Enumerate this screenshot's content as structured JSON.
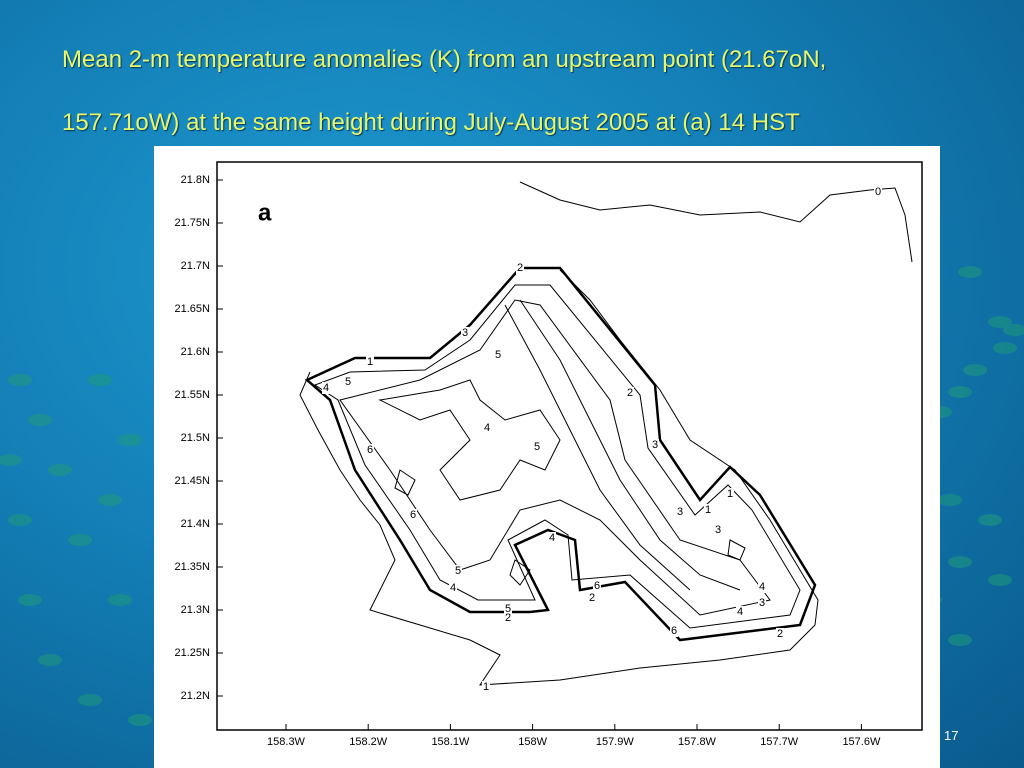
{
  "slide": {
    "title_line1": "Mean 2-m temperature anomalies (K) from an upstream point (21.67oN,",
    "title_line2": "157.71oW) at the same height during July-August 2005 at (a) 14 HST",
    "slide_number": "17"
  },
  "map": {
    "panel_label": "a",
    "yticks": [
      "21.8N",
      "21.75N",
      "21.7N",
      "21.65N",
      "21.6N",
      "21.55N",
      "21.5N",
      "21.45N",
      "21.4N",
      "21.35N",
      "21.3N",
      "21.25N",
      "21.2N"
    ],
    "xticks": [
      "158.3W",
      "158.2W",
      "158.1W",
      "158W",
      "157.9W",
      "157.8W",
      "157.7W",
      "157.6W"
    ],
    "contour_labels": [
      "1",
      "2",
      "3",
      "4",
      "5",
      "5",
      "6",
      "6",
      "4",
      "5",
      "2",
      "3",
      "1",
      "1",
      "3",
      "3",
      "4",
      "3",
      "4",
      "2",
      "5",
      "2",
      "2",
      "6",
      "4",
      "5",
      "4",
      "6",
      "1",
      "0"
    ]
  }
}
